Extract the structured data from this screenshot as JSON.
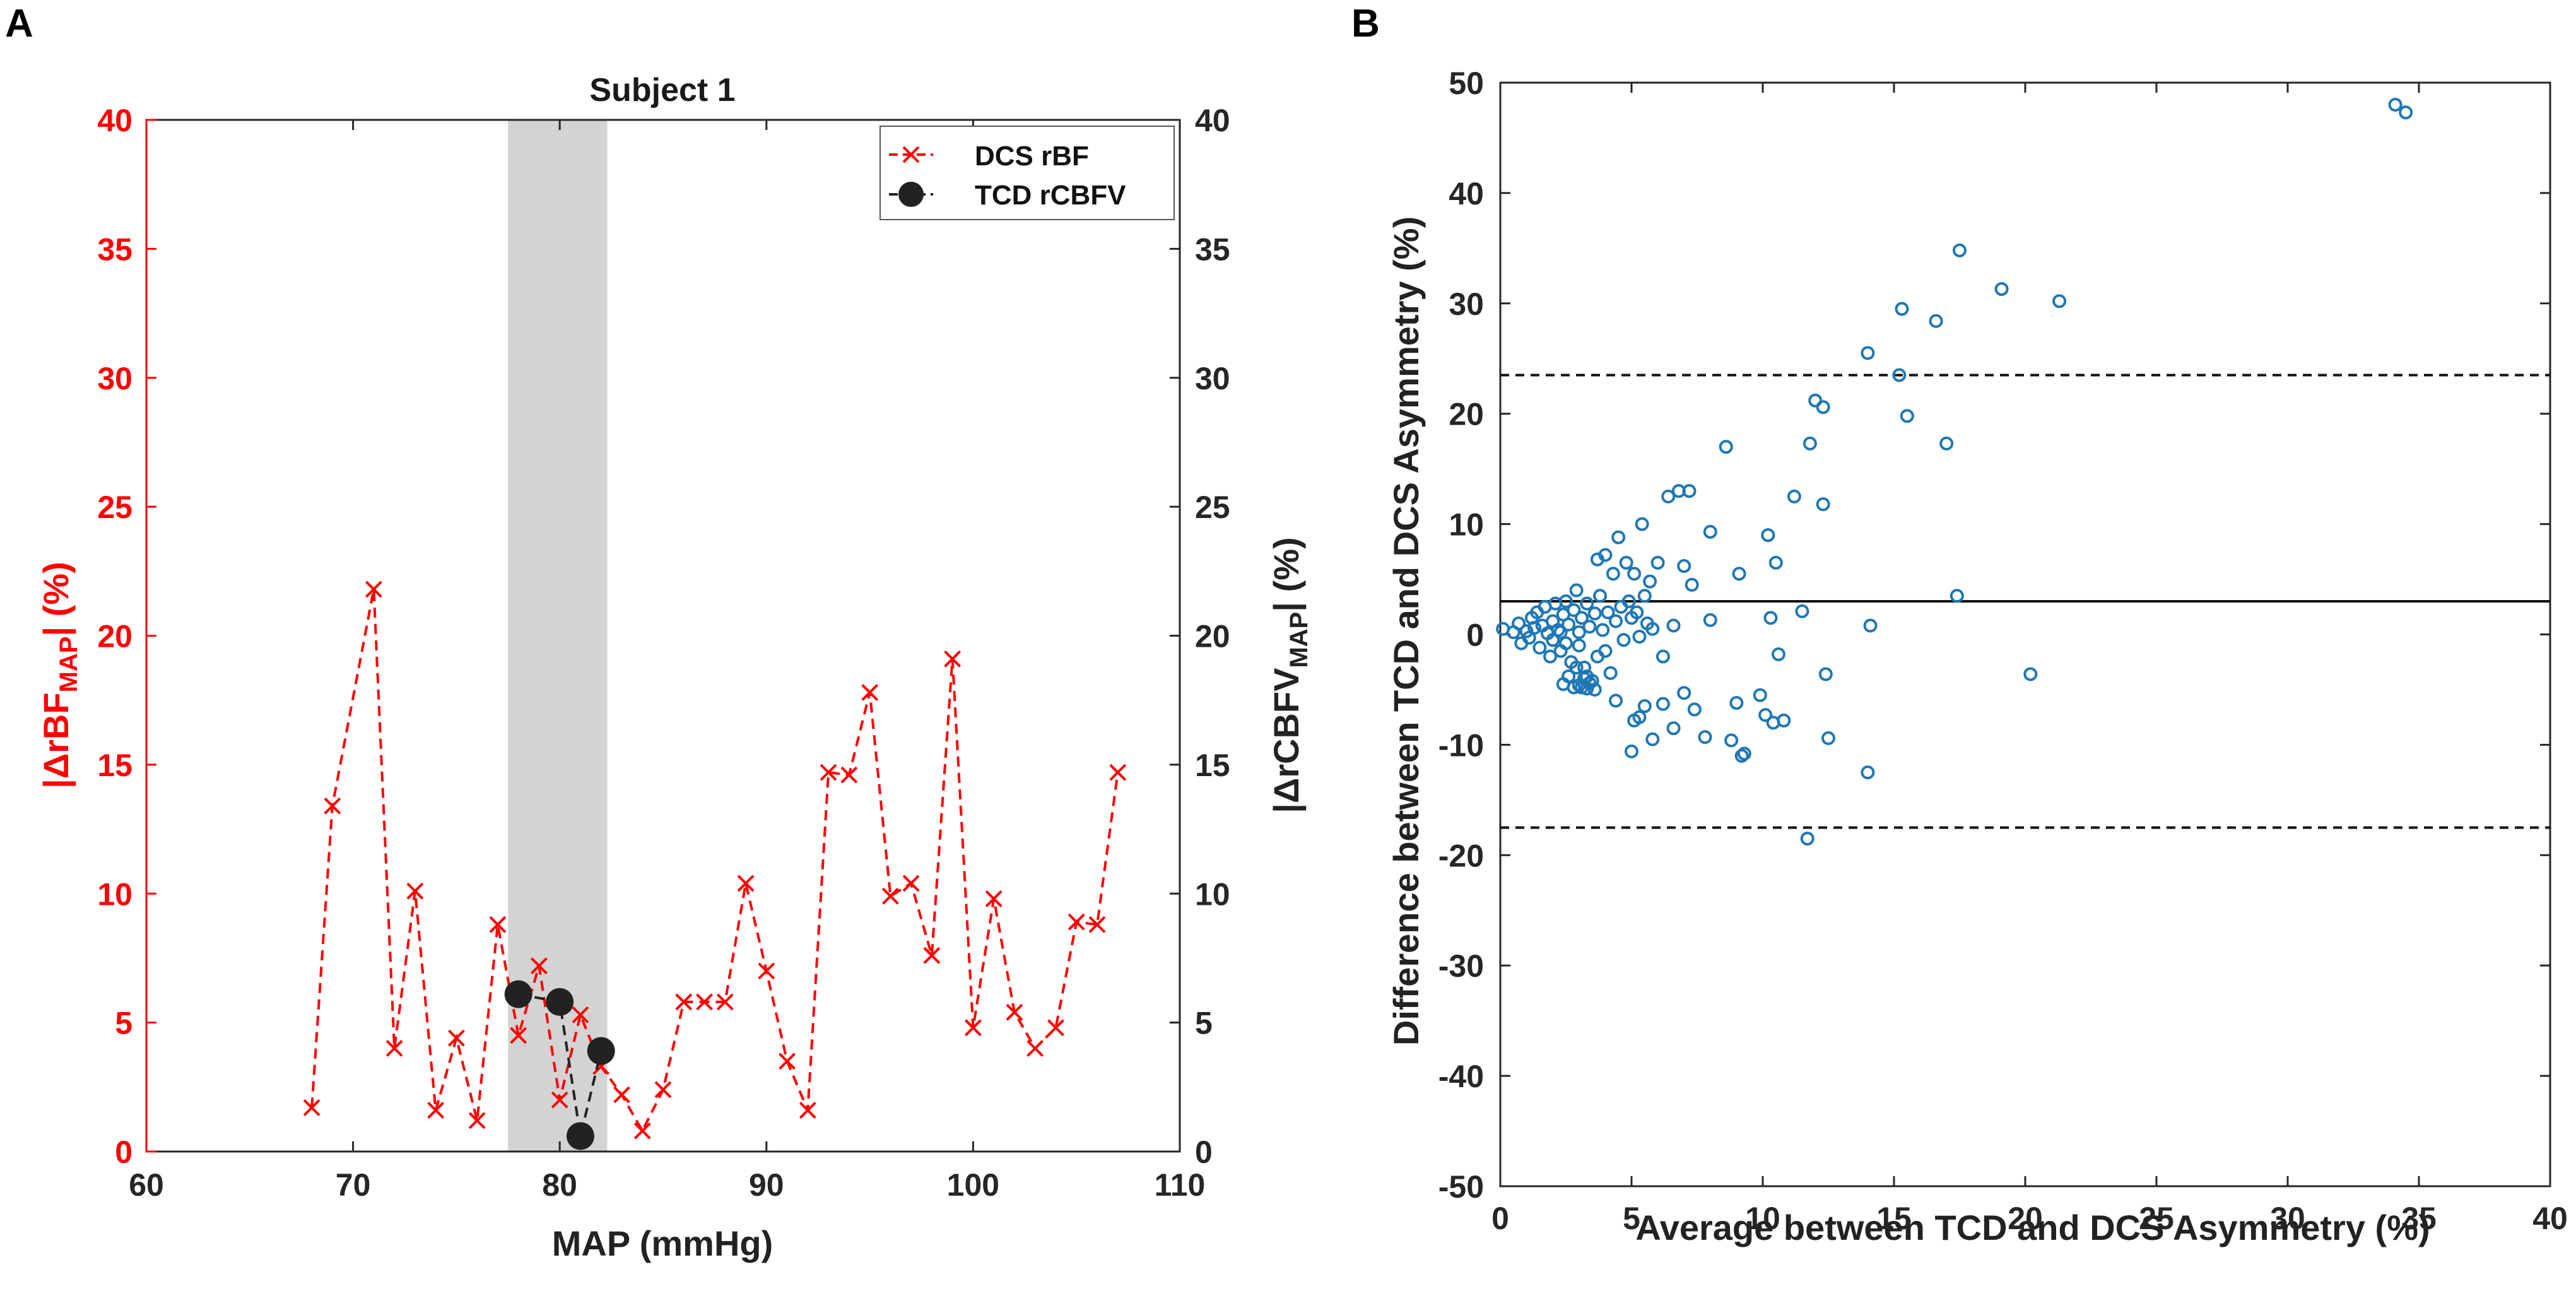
{
  "panels": {
    "a": {
      "letter": "A"
    },
    "b": {
      "letter": "B"
    }
  },
  "colors": {
    "red": "#ff0000",
    "dark": "#222222",
    "blue": "#1f77b4",
    "shade": "#d3d3d3",
    "axis": "#262626"
  },
  "chart_data": [
    {
      "id": "a",
      "type": "line",
      "title": "Subject 1",
      "xlabel": "MAP (mmHg)",
      "ylabel_left": {
        "main": "|ΔrBF",
        "sub": "MAP",
        "tail": "| (%)"
      },
      "ylabel_right": {
        "main": "|ΔrCBFV",
        "sub": "MAP",
        "tail": "| (%)"
      },
      "xlim": [
        60,
        110
      ],
      "ylim": [
        0,
        40
      ],
      "xticks": [
        60,
        70,
        80,
        90,
        100,
        110
      ],
      "yticks": [
        0,
        5,
        10,
        15,
        20,
        25,
        30,
        35,
        40
      ],
      "shaded_region": [
        77.5,
        82.3
      ],
      "legend": {
        "position": "top-right",
        "entries": [
          "DCS rBF",
          "TCD rCBFV"
        ]
      },
      "series": [
        {
          "name": "DCS rBF",
          "axis": "left",
          "style": "dashed-x",
          "x": [
            68,
            69,
            71,
            72,
            73,
            74,
            75,
            76,
            77,
            78,
            79,
            80,
            81,
            82,
            83,
            84,
            85,
            86,
            87,
            88,
            89,
            90,
            91,
            92,
            93,
            94,
            95,
            96,
            97,
            98,
            99,
            100,
            101,
            102,
            103,
            104,
            105,
            106,
            107
          ],
          "y": [
            1.7,
            13.4,
            21.8,
            4.0,
            10.1,
            1.6,
            4.4,
            1.2,
            8.8,
            4.5,
            7.2,
            2.0,
            5.3,
            3.3,
            2.2,
            0.8,
            2.4,
            5.8,
            5.8,
            5.8,
            10.4,
            7.0,
            3.5,
            1.6,
            14.7,
            14.6,
            17.8,
            9.9,
            10.4,
            7.6,
            19.1,
            4.8,
            9.8,
            5.4,
            4.0,
            4.8,
            8.9,
            8.8,
            14.7
          ]
        },
        {
          "name": "TCD rCBFV",
          "axis": "right",
          "style": "dashed-dot",
          "x": [
            78,
            80,
            81,
            82
          ],
          "y": [
            6.1,
            5.8,
            0.6,
            3.9
          ]
        }
      ]
    },
    {
      "id": "b",
      "type": "scatter",
      "title": "",
      "xlabel": "Average between TCD and DCS Asymmetry (%)",
      "ylabel": "Difference between TCD and DCS Asymmetry (%)",
      "xlim": [
        0,
        40
      ],
      "ylim": [
        -50,
        50
      ],
      "xticks": [
        0,
        5,
        10,
        15,
        20,
        25,
        30,
        35,
        40
      ],
      "yticks": [
        -50,
        -40,
        -30,
        -20,
        -10,
        0,
        10,
        20,
        30,
        40,
        50
      ],
      "mean_line": 3.0,
      "limits_of_agreement": [
        23.5,
        -17.5
      ],
      "points": [
        [
          0.1,
          0.5
        ],
        [
          0.5,
          0.2
        ],
        [
          0.7,
          1.0
        ],
        [
          0.8,
          -0.8
        ],
        [
          1.0,
          0.3
        ],
        [
          1.1,
          -0.3
        ],
        [
          1.2,
          1.5
        ],
        [
          1.3,
          0.6
        ],
        [
          1.4,
          2.0
        ],
        [
          1.5,
          -1.2
        ],
        [
          1.6,
          0.8
        ],
        [
          1.7,
          2.5
        ],
        [
          1.8,
          0.1
        ],
        [
          1.9,
          -2.0
        ],
        [
          2.0,
          1.2
        ],
        [
          2.0,
          -0.5
        ],
        [
          2.1,
          2.8
        ],
        [
          2.2,
          0.4
        ],
        [
          2.3,
          -1.5
        ],
        [
          2.4,
          1.8
        ],
        [
          2.5,
          3.0
        ],
        [
          2.5,
          -0.8
        ],
        [
          2.6,
          0.9
        ],
        [
          2.7,
          -2.5
        ],
        [
          2.8,
          2.2
        ],
        [
          2.9,
          4.0
        ],
        [
          3.0,
          0.2
        ],
        [
          3.0,
          -1.0
        ],
        [
          3.1,
          1.5
        ],
        [
          3.2,
          -3.0
        ],
        [
          3.3,
          2.8
        ],
        [
          3.3,
          -3.8
        ],
        [
          3.4,
          0.7
        ],
        [
          3.5,
          -4.2
        ],
        [
          3.6,
          1.9
        ],
        [
          3.7,
          6.8
        ],
        [
          3.7,
          -2.0
        ],
        [
          3.8,
          3.5
        ],
        [
          3.9,
          0.4
        ],
        [
          4.0,
          7.2
        ],
        [
          4.0,
          -1.5
        ],
        [
          4.1,
          2.0
        ],
        [
          4.2,
          -3.5
        ],
        [
          4.3,
          5.5
        ],
        [
          4.4,
          1.2
        ],
        [
          4.5,
          8.8
        ],
        [
          4.6,
          2.5
        ],
        [
          4.7,
          -0.5
        ],
        [
          4.8,
          6.5
        ],
        [
          4.9,
          3.0
        ],
        [
          5.0,
          1.5
        ],
        [
          5.1,
          5.5
        ],
        [
          5.2,
          2.0
        ],
        [
          5.3,
          -0.2
        ],
        [
          5.4,
          10.0
        ],
        [
          5.5,
          3.5
        ],
        [
          5.6,
          1.0
        ],
        [
          5.7,
          4.8
        ],
        [
          5.8,
          0.5
        ],
        [
          6.0,
          6.5
        ],
        [
          6.2,
          -2.0
        ],
        [
          6.4,
          12.5
        ],
        [
          6.6,
          0.8
        ],
        [
          6.8,
          13.0
        ],
        [
          7.0,
          6.2
        ],
        [
          7.2,
          13.0
        ],
        [
          7.3,
          4.5
        ],
        [
          2.3,
          0.2
        ],
        [
          2.4,
          -4.5
        ],
        [
          2.6,
          -3.8
        ],
        [
          2.8,
          -4.8
        ],
        [
          3.0,
          -4.6
        ],
        [
          3.1,
          -4.8
        ],
        [
          3.2,
          -4.0
        ],
        [
          3.4,
          -4.4
        ],
        [
          3.6,
          -5.0
        ],
        [
          3.3,
          -4.9
        ],
        [
          2.9,
          -3.0
        ],
        [
          4.4,
          -6.0
        ],
        [
          5.0,
          -10.6
        ],
        [
          5.1,
          -7.8
        ],
        [
          5.3,
          -7.5
        ],
        [
          5.5,
          -6.5
        ],
        [
          5.8,
          -9.5
        ],
        [
          6.2,
          -6.3
        ],
        [
          6.6,
          -8.5
        ],
        [
          7.0,
          -5.3
        ],
        [
          7.4,
          -6.8
        ],
        [
          7.8,
          -9.3
        ],
        [
          8.0,
          1.3
        ],
        [
          8.0,
          9.3
        ],
        [
          8.6,
          17.0
        ],
        [
          8.8,
          -9.6
        ],
        [
          9.0,
          -6.2
        ],
        [
          9.1,
          5.5
        ],
        [
          9.2,
          -11.0
        ],
        [
          9.3,
          -10.8
        ],
        [
          9.9,
          -5.5
        ],
        [
          10.1,
          -7.3
        ],
        [
          10.2,
          9.0
        ],
        [
          10.3,
          1.5
        ],
        [
          10.4,
          -8.0
        ],
        [
          10.5,
          6.5
        ],
        [
          10.6,
          -1.8
        ],
        [
          10.8,
          -7.8
        ],
        [
          11.2,
          12.5
        ],
        [
          11.5,
          2.1
        ],
        [
          11.7,
          -18.5
        ],
        [
          11.8,
          17.3
        ],
        [
          12.0,
          21.2
        ],
        [
          12.3,
          20.6
        ],
        [
          12.3,
          11.8
        ],
        [
          12.4,
          -3.6
        ],
        [
          12.5,
          -9.4
        ],
        [
          14.1,
          0.8
        ],
        [
          14.0,
          -12.5
        ],
        [
          14.0,
          25.5
        ],
        [
          15.2,
          23.5
        ],
        [
          15.3,
          29.5
        ],
        [
          15.5,
          19.8
        ],
        [
          16.6,
          28.4
        ],
        [
          17.0,
          17.3
        ],
        [
          17.4,
          3.5
        ],
        [
          17.5,
          34.8
        ],
        [
          19.1,
          31.3
        ],
        [
          20.2,
          -3.6
        ],
        [
          21.3,
          30.2
        ],
        [
          34.1,
          48.0
        ],
        [
          34.5,
          47.3
        ]
      ]
    }
  ]
}
